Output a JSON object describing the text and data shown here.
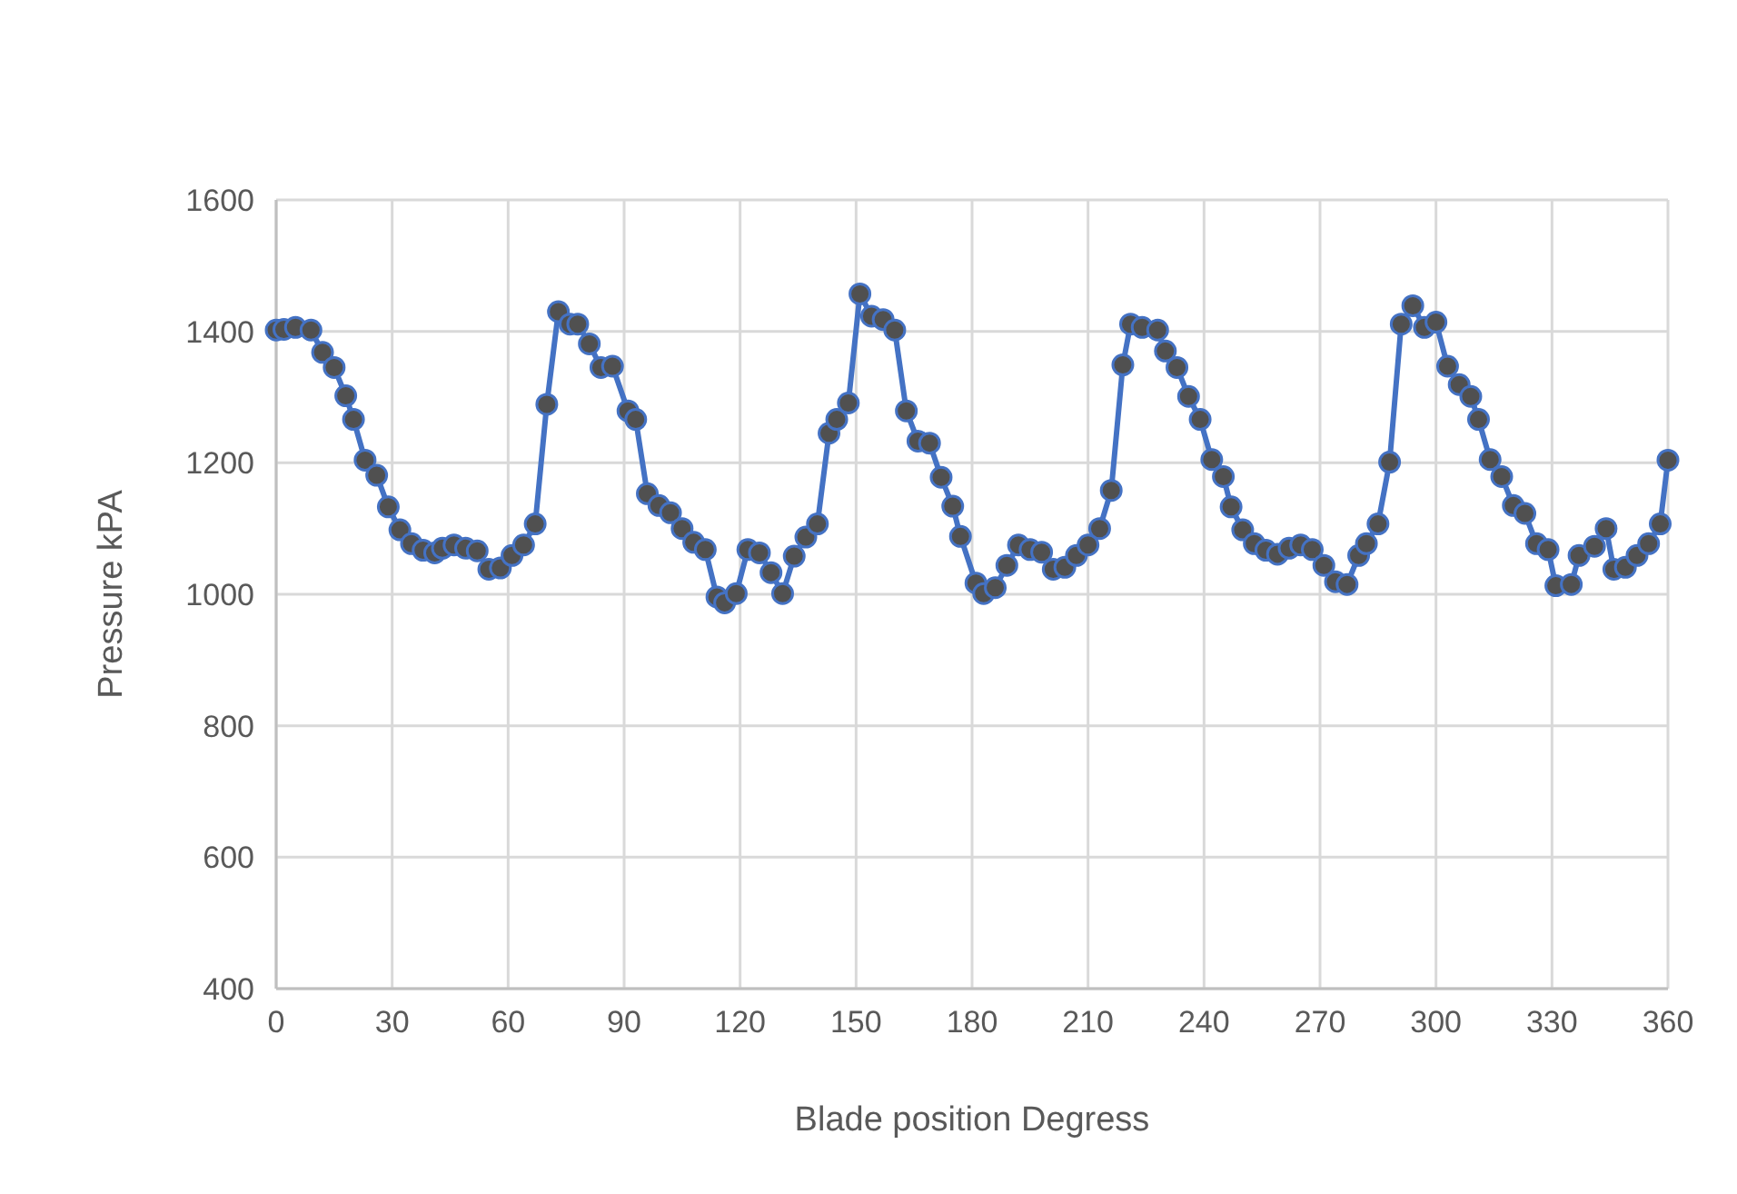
{
  "chart_data": {
    "type": "line",
    "xlabel": "Blade position Degress",
    "ylabel": "Pressure kPA",
    "xlim": [
      0,
      360
    ],
    "xticks": [
      0,
      30,
      60,
      90,
      120,
      150,
      180,
      210,
      240,
      270,
      300,
      330,
      360
    ],
    "ylim": [
      400,
      1600
    ],
    "yticks": [
      400,
      600,
      800,
      1000,
      1200,
      1400,
      1600
    ],
    "grid": true,
    "marker": "circle",
    "line_style": "solid",
    "series": [
      {
        "color": "#4472c4",
        "x": [
          0,
          2,
          5,
          9,
          12,
          15,
          18,
          20,
          23,
          26,
          29,
          32,
          35,
          38,
          41,
          43,
          46,
          49,
          52,
          55,
          58,
          61,
          64,
          67,
          70,
          73,
          76,
          78,
          81,
          84,
          87,
          91,
          93,
          96,
          99,
          102,
          105,
          108,
          111,
          114,
          116,
          119,
          122,
          125,
          128,
          131,
          134,
          137,
          140,
          143,
          145,
          148,
          151,
          154,
          157,
          160,
          163,
          166,
          169,
          172,
          175,
          177,
          181,
          183,
          186,
          189,
          192,
          195,
          198,
          201,
          204,
          207,
          210,
          213,
          216,
          219,
          221,
          224,
          228,
          230,
          233,
          236,
          239,
          242,
          245,
          247,
          250,
          253,
          256,
          259,
          262,
          265,
          268,
          271,
          274,
          277,
          280,
          282,
          285,
          288,
          291,
          294,
          297,
          300,
          303,
          306,
          309,
          311,
          314,
          317,
          320,
          323,
          326,
          329,
          331,
          335,
          337,
          341,
          344,
          346,
          349,
          352,
          355,
          358,
          360
        ],
        "values": [
          1402,
          1403,
          1406,
          1402,
          1368,
          1345,
          1302,
          1266,
          1204,
          1181,
          1133,
          1098,
          1077,
          1067,
          1063,
          1070,
          1075,
          1070,
          1066,
          1038,
          1040,
          1059,
          1075,
          1107,
          1289,
          1430,
          1411,
          1411,
          1381,
          1345,
          1347,
          1279,
          1266,
          1153,
          1135,
          1124,
          1100,
          1079,
          1068,
          996,
          987,
          1001,
          1068,
          1063,
          1033,
          1001,
          1058,
          1087,
          1107,
          1245,
          1266,
          1291,
          1457,
          1423,
          1418,
          1402,
          1279,
          1233,
          1230,
          1178,
          1134,
          1088,
          1017,
          1001,
          1010,
          1044,
          1075,
          1068,
          1064,
          1038,
          1041,
          1059,
          1075,
          1100,
          1158,
          1349,
          1411,
          1406,
          1402,
          1370,
          1345,
          1301,
          1266,
          1205,
          1179,
          1133,
          1098,
          1077,
          1067,
          1061,
          1070,
          1075,
          1068,
          1044,
          1019,
          1015,
          1059,
          1077,
          1107,
          1201,
          1411,
          1439,
          1406,
          1414,
          1347,
          1319,
          1301,
          1266,
          1205,
          1179,
          1135,
          1123,
          1077,
          1068,
          1013,
          1015,
          1059,
          1073,
          1100,
          1038,
          1041,
          1059,
          1077,
          1107,
          1204
        ]
      }
    ]
  }
}
